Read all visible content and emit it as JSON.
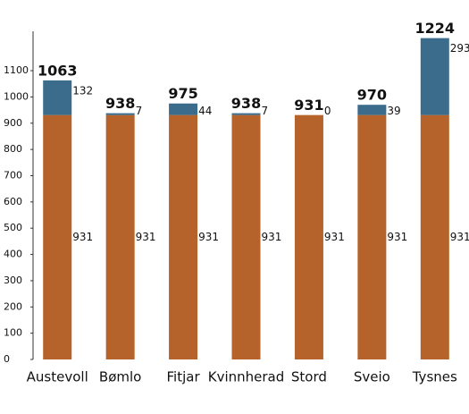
{
  "chart_data": {
    "type": "stacked_bar",
    "categories": [
      "Austevoll",
      "Bømlo",
      "Fitjar",
      "Kvinnherad",
      "Stord",
      "Sveio",
      "Tysnes"
    ],
    "series": [
      {
        "color": "#b5632a",
        "values": [
          931,
          931,
          931,
          931,
          931,
          931,
          931
        ]
      },
      {
        "color": "#3b6c8c",
        "values": [
          132,
          7,
          44,
          7,
          0,
          39,
          293
        ]
      }
    ],
    "totals": [
      1063,
      938,
      975,
      938,
      931,
      970,
      1224
    ],
    "ylim": [
      0,
      1250
    ],
    "yticks": [
      0,
      100,
      200,
      300,
      400,
      500,
      600,
      700,
      800,
      900,
      1000,
      1100
    ],
    "grid": false
  }
}
